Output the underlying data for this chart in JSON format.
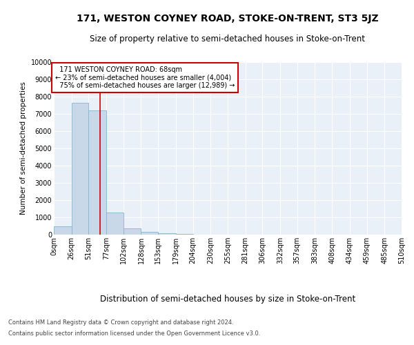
{
  "title": "171, WESTON COYNEY ROAD, STOKE-ON-TRENT, ST3 5JZ",
  "subtitle": "Size of property relative to semi-detached houses in Stoke-on-Trent",
  "xlabel": "Distribution of semi-detached houses by size in Stoke-on-Trent",
  "ylabel": "Number of semi-detached properties",
  "footnote1": "Contains HM Land Registry data © Crown copyright and database right 2024.",
  "footnote2": "Contains public sector information licensed under the Open Government Licence v3.0.",
  "bin_edges": [
    0,
    26,
    51,
    77,
    102,
    128,
    153,
    179,
    204,
    230,
    255,
    281,
    306,
    332,
    357,
    383,
    408,
    434,
    459,
    485,
    510
  ],
  "bar_heights": [
    500,
    7650,
    7200,
    1300,
    350,
    150,
    80,
    60,
    0,
    0,
    0,
    0,
    0,
    0,
    0,
    0,
    0,
    0,
    0,
    0
  ],
  "bar_color": "#c8d8e8",
  "bar_edgecolor": "#8ab4cc",
  "property_size": 68,
  "property_label": "171 WESTON COYNEY ROAD: 68sqm",
  "pct_smaller": 23,
  "count_smaller": "4,004",
  "pct_larger": 75,
  "count_larger": "12,989",
  "vline_color": "#cc0000",
  "annotation_box_edgecolor": "#cc0000",
  "annotation_box_facecolor": "#ffffff",
  "ylim": [
    0,
    10000
  ],
  "yticks": [
    0,
    1000,
    2000,
    3000,
    4000,
    5000,
    6000,
    7000,
    8000,
    9000,
    10000
  ],
  "title_fontsize": 10,
  "subtitle_fontsize": 8.5,
  "xlabel_fontsize": 8.5,
  "ylabel_fontsize": 7.5,
  "tick_fontsize": 7,
  "annot_fontsize": 7,
  "bg_color": "#eaf0f8",
  "fig_bg_color": "#ffffff",
  "grid_color": "#ffffff"
}
